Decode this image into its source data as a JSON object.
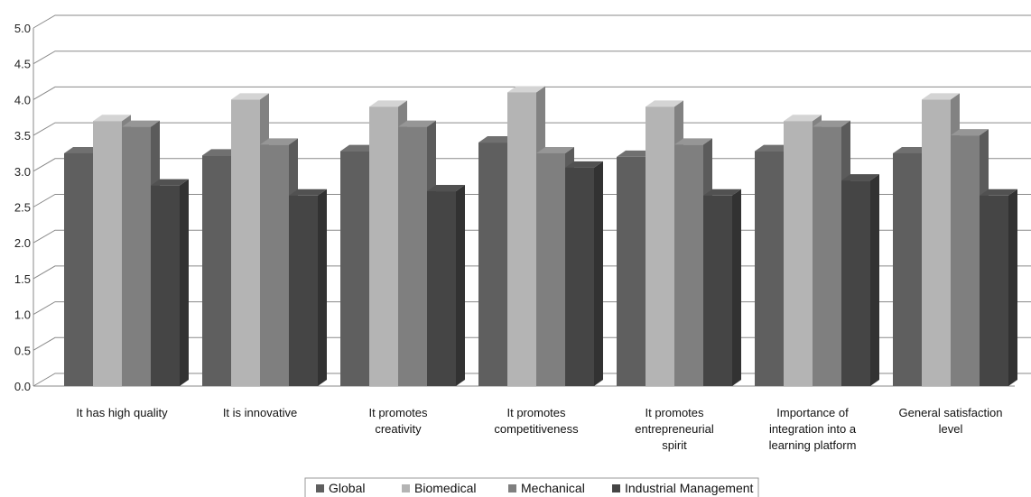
{
  "chart_data": {
    "type": "bar",
    "title": "",
    "xlabel": "",
    "ylabel": "",
    "ylim": [
      0,
      5
    ],
    "ytick_step": 0.5,
    "yticks": [
      "0.0",
      "0.5",
      "1.0",
      "1.5",
      "2.0",
      "2.5",
      "3.0",
      "3.5",
      "4.0",
      "4.5",
      "5.0"
    ],
    "grid": true,
    "style": "3d-clustered-column",
    "legend_position": "bottom",
    "categories": [
      [
        "It has high quality"
      ],
      [
        "It is innovative"
      ],
      [
        "It promotes",
        "creativity"
      ],
      [
        "It promotes",
        "competitiveness"
      ],
      [
        "It promotes",
        "entrepreneurial",
        "spirit"
      ],
      [
        "Importance of",
        "integration into a",
        "learning platform"
      ],
      [
        "General satisfaction",
        "level"
      ]
    ],
    "series": [
      {
        "name": "Global",
        "color": "#5f5f5f",
        "values": [
          3.25,
          3.22,
          3.28,
          3.4,
          3.2,
          3.28,
          3.25
        ]
      },
      {
        "name": "Biomedical",
        "color": "#b4b4b4",
        "values": [
          3.7,
          4.0,
          3.9,
          4.1,
          3.9,
          3.7,
          4.0
        ]
      },
      {
        "name": "Mechanical",
        "color": "#7f7f7f",
        "values": [
          3.62,
          3.37,
          3.62,
          3.25,
          3.37,
          3.62,
          3.5
        ]
      },
      {
        "name": "Industrial Management",
        "color": "#454545",
        "values": [
          2.8,
          2.66,
          2.72,
          3.05,
          2.66,
          2.87,
          2.66
        ]
      }
    ]
  }
}
